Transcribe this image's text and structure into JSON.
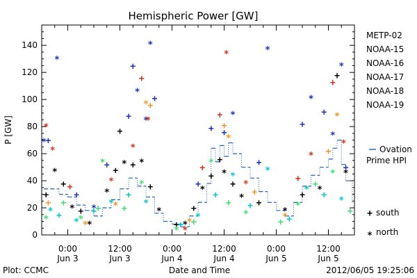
{
  "chart_data": {
    "type": "scatter",
    "title": "Hemispheric Power [GW]",
    "ylabel": "P [GW]",
    "xlabel": "Date and Time",
    "ylim": [
      0,
      155
    ],
    "yticks": [
      0,
      20,
      40,
      60,
      80,
      100,
      120,
      140
    ],
    "xlim": [
      "2012-06-02 18:00",
      "2012-06-05 18:00"
    ],
    "xticks": [
      {
        "at": "2012-06-03 00:00",
        "time": "0:00",
        "date": "Jun 3"
      },
      {
        "at": "2012-06-03 12:00",
        "time": "12:00",
        "date": "Jun 3"
      },
      {
        "at": "2012-06-04 00:00",
        "time": "0:00",
        "date": "Jun 4"
      },
      {
        "at": "2012-06-04 12:00",
        "time": "12:00",
        "date": "Jun 4"
      },
      {
        "at": "2012-06-05 00:00",
        "time": "0:00",
        "date": "Jun 5"
      },
      {
        "at": "2012-06-05 12:00",
        "time": "12:00",
        "date": "Jun 5"
      }
    ],
    "marker_legend": [
      {
        "symbol": "+",
        "label": "south"
      },
      {
        "symbol": "*",
        "label": "north"
      }
    ],
    "ovation": {
      "name": "Ovation Prime HPI",
      "color": "#1f5fbf",
      "points": [
        [
          "2012-06-02 18:30",
          34
        ],
        [
          "2012-06-02 20:00",
          34
        ],
        [
          "2012-06-02 22:00",
          30
        ],
        [
          "2012-06-03 00:00",
          28
        ],
        [
          "2012-06-03 02:00",
          22
        ],
        [
          "2012-06-03 04:00",
          18
        ],
        [
          "2012-06-03 06:00",
          14
        ],
        [
          "2012-06-03 08:00",
          20
        ],
        [
          "2012-06-03 10:00",
          26
        ],
        [
          "2012-06-03 12:00",
          34
        ],
        [
          "2012-06-03 14:00",
          42
        ],
        [
          "2012-06-03 16:00",
          36
        ],
        [
          "2012-06-03 18:00",
          28
        ],
        [
          "2012-06-03 20:00",
          16
        ],
        [
          "2012-06-03 22:00",
          10
        ],
        [
          "2012-06-04 00:00",
          8
        ],
        [
          "2012-06-04 02:00",
          6
        ],
        [
          "2012-06-04 04:00",
          14
        ],
        [
          "2012-06-04 06:00",
          24
        ],
        [
          "2012-06-04 08:00",
          38
        ],
        [
          "2012-06-04 09:00",
          64
        ],
        [
          "2012-06-04 10:00",
          54
        ],
        [
          "2012-06-04 11:00",
          66
        ],
        [
          "2012-06-04 12:00",
          58
        ],
        [
          "2012-06-04 13:00",
          68
        ],
        [
          "2012-06-04 14:00",
          60
        ],
        [
          "2012-06-04 16:00",
          50
        ],
        [
          "2012-06-04 18:00",
          42
        ],
        [
          "2012-06-04 20:00",
          32
        ],
        [
          "2012-06-04 22:00",
          24
        ],
        [
          "2012-06-05 00:00",
          18
        ],
        [
          "2012-06-05 02:00",
          14
        ],
        [
          "2012-06-05 04:00",
          24
        ],
        [
          "2012-06-05 06:00",
          36
        ],
        [
          "2012-06-05 08:00",
          44
        ],
        [
          "2012-06-05 10:00",
          50
        ],
        [
          "2012-06-05 12:00",
          56
        ],
        [
          "2012-06-05 13:00",
          64
        ],
        [
          "2012-06-05 14:00",
          70
        ],
        [
          "2012-06-05 15:00",
          52
        ],
        [
          "2012-06-05 16:00",
          40
        ],
        [
          "2012-06-05 17:30",
          24
        ]
      ]
    },
    "series": [
      {
        "name": "METP-02",
        "color": "#000000",
        "points": [
          [
            "2012-06-02 19:00",
            30,
            "+"
          ],
          [
            "2012-06-02 21:00",
            49,
            "*"
          ],
          [
            "2012-06-02 23:00",
            38,
            "+"
          ],
          [
            "2012-06-03 01:00",
            22,
            "*"
          ],
          [
            "2012-06-03 03:00",
            18,
            "+"
          ],
          [
            "2012-06-03 05:00",
            10,
            "*"
          ],
          [
            "2012-06-03 07:00",
            20,
            "+"
          ],
          [
            "2012-06-03 09:00",
            34,
            "*"
          ],
          [
            "2012-06-03 11:00",
            48,
            "+"
          ],
          [
            "2012-06-03 12:00",
            77,
            "+"
          ],
          [
            "2012-06-03 13:00",
            55,
            "*"
          ],
          [
            "2012-06-03 15:00",
            52,
            "+"
          ],
          [
            "2012-06-03 17:00",
            56,
            "*"
          ],
          [
            "2012-06-03 19:00",
            36,
            "+"
          ],
          [
            "2012-06-03 21:00",
            20,
            "*"
          ],
          [
            "2012-06-04 01:00",
            8,
            "+"
          ],
          [
            "2012-06-04 03:00",
            10,
            "*"
          ],
          [
            "2012-06-04 05:00",
            20,
            "+"
          ],
          [
            "2012-06-04 07:00",
            36,
            "*"
          ],
          [
            "2012-06-04 09:00",
            44,
            "+"
          ],
          [
            "2012-06-04 11:00",
            56,
            "+"
          ],
          [
            "2012-06-04 12:00",
            48,
            "*"
          ],
          [
            "2012-06-04 14:00",
            38,
            "+"
          ],
          [
            "2012-06-04 16:00",
            30,
            "*"
          ],
          [
            "2012-06-04 20:00",
            24,
            "+"
          ],
          [
            "2012-06-05 02:00",
            20,
            "*"
          ],
          [
            "2012-06-05 06:00",
            30,
            "+"
          ],
          [
            "2012-06-05 10:00",
            36,
            "*"
          ],
          [
            "2012-06-05 14:00",
            118,
            "+"
          ],
          [
            "2012-06-05 16:00",
            48,
            "*"
          ]
        ]
      },
      {
        "name": "NOAA-15",
        "color": "#1a2fbf",
        "points": [
          [
            "2012-06-02 18:30",
            71,
            "*"
          ],
          [
            "2012-06-02 19:30",
            70,
            "+"
          ],
          [
            "2012-06-02 21:30",
            132,
            "*"
          ],
          [
            "2012-06-03 02:00",
            30,
            "+"
          ],
          [
            "2012-06-03 06:00",
            22,
            "*"
          ],
          [
            "2012-06-03 09:00",
            52,
            "+"
          ],
          [
            "2012-06-03 14:00",
            88,
            "+"
          ],
          [
            "2012-06-03 15:00",
            125,
            "+"
          ],
          [
            "2012-06-03 16:00",
            108,
            "*"
          ],
          [
            "2012-06-03 18:00",
            87,
            "*"
          ],
          [
            "2012-06-03 19:00",
            143,
            "*"
          ],
          [
            "2012-06-03 20:00",
            101,
            "+"
          ],
          [
            "2012-06-04 06:00",
            38,
            "+"
          ],
          [
            "2012-06-04 09:00",
            79,
            "+"
          ],
          [
            "2012-06-04 12:00",
            76,
            "+"
          ],
          [
            "2012-06-04 14:00",
            91,
            "*"
          ],
          [
            "2012-06-04 20:00",
            54,
            "+"
          ],
          [
            "2012-06-04 22:00",
            139,
            "*"
          ],
          [
            "2012-06-05 06:00",
            82,
            "+"
          ],
          [
            "2012-06-05 08:00",
            103,
            "*"
          ],
          [
            "2012-06-05 11:00",
            91,
            "+"
          ],
          [
            "2012-06-05 13:00",
            76,
            "*"
          ],
          [
            "2012-06-05 15:00",
            127,
            "*"
          ],
          [
            "2012-06-05 16:00",
            50,
            "+"
          ]
        ]
      },
      {
        "name": "NOAA-16",
        "color": "#00c8d2",
        "points": [
          [
            "2012-06-02 20:00",
            20,
            "*"
          ],
          [
            "2012-06-02 22:00",
            15,
            "+"
          ],
          [
            "2012-06-03 02:00",
            12,
            "*"
          ],
          [
            "2012-06-03 06:00",
            18,
            "+"
          ],
          [
            "2012-06-03 10:00",
            26,
            "*"
          ],
          [
            "2012-06-03 14:00",
            30,
            "+"
          ],
          [
            "2012-06-03 18:00",
            26,
            "*"
          ],
          [
            "2012-06-04 02:00",
            8,
            "+"
          ],
          [
            "2012-06-04 06:00",
            16,
            "*"
          ],
          [
            "2012-06-04 10:00",
            30,
            "+"
          ],
          [
            "2012-06-04 14:00",
            46,
            "*"
          ],
          [
            "2012-06-04 18:00",
            22,
            "+"
          ],
          [
            "2012-06-04 22:00",
            50,
            "*"
          ],
          [
            "2012-06-05 03:00",
            12,
            "+"
          ],
          [
            "2012-06-05 07:00",
            36,
            "*"
          ],
          [
            "2012-06-05 11:00",
            30,
            "+"
          ],
          [
            "2012-06-05 15:00",
            28,
            "*"
          ]
        ]
      },
      {
        "name": "NOAA-17",
        "color": "#3ce070",
        "points": [
          [
            "2012-06-02 19:00",
            14,
            "*"
          ],
          [
            "2012-06-02 23:00",
            24,
            "+"
          ],
          [
            "2012-06-03 03:00",
            14,
            "*"
          ],
          [
            "2012-06-03 07:00",
            20,
            "+"
          ],
          [
            "2012-06-03 08:00",
            56,
            "*"
          ],
          [
            "2012-06-03 13:00",
            20,
            "+"
          ],
          [
            "2012-06-03 17:00",
            40,
            "*"
          ],
          [
            "2012-06-04 01:00",
            6,
            "*"
          ],
          [
            "2012-06-04 05:00",
            10,
            "+"
          ],
          [
            "2012-06-04 09:00",
            56,
            "*"
          ],
          [
            "2012-06-04 13:00",
            24,
            "+"
          ],
          [
            "2012-06-04 17:00",
            18,
            "*"
          ],
          [
            "2012-06-05 01:00",
            10,
            "+"
          ],
          [
            "2012-06-05 05:00",
            24,
            "*"
          ],
          [
            "2012-06-05 09:00",
            38,
            "+"
          ],
          [
            "2012-06-05 13:00",
            48,
            "*"
          ],
          [
            "2012-06-05 17:00",
            18,
            "+"
          ]
        ]
      },
      {
        "name": "NOAA-18",
        "color": "#f0961e",
        "points": [
          [
            "2012-06-02 19:30",
            24,
            "+"
          ],
          [
            "2012-06-03 04:00",
            10,
            "*"
          ],
          [
            "2012-06-03 11:00",
            24,
            "*"
          ],
          [
            "2012-06-03 18:00",
            99,
            "*"
          ],
          [
            "2012-06-03 19:00",
            96,
            "+"
          ],
          [
            "2012-06-04 04:00",
            12,
            "*"
          ],
          [
            "2012-06-04 12:00",
            81,
            "+"
          ],
          [
            "2012-06-04 13:00",
            74,
            "*"
          ],
          [
            "2012-06-04 19:00",
            32,
            "+"
          ],
          [
            "2012-06-05 02:00",
            16,
            "*"
          ],
          [
            "2012-06-05 12:00",
            62,
            "+"
          ],
          [
            "2012-06-05 14:00",
            90,
            "*"
          ]
        ]
      },
      {
        "name": "NOAA-19",
        "color": "#d23218",
        "points": [
          [
            "2012-06-02 19:00",
            82,
            "*"
          ],
          [
            "2012-06-02 20:30",
            65,
            "*"
          ],
          [
            "2012-06-03 00:30",
            36,
            "+"
          ],
          [
            "2012-06-03 10:00",
            42,
            "*"
          ],
          [
            "2012-06-03 15:00",
            67,
            "*"
          ],
          [
            "2012-06-03 17:00",
            116,
            "+"
          ],
          [
            "2012-06-03 18:30",
            87,
            "*"
          ],
          [
            "2012-06-04 03:00",
            6,
            "*"
          ],
          [
            "2012-06-04 07:00",
            50,
            "+"
          ],
          [
            "2012-06-04 11:00",
            89,
            "+"
          ],
          [
            "2012-06-04 12:30",
            136,
            "*"
          ],
          [
            "2012-06-04 17:00",
            40,
            "*"
          ],
          [
            "2012-06-05 05:00",
            42,
            "+"
          ],
          [
            "2012-06-05 08:00",
            61,
            "*"
          ],
          [
            "2012-06-05 13:00",
            113,
            "+"
          ],
          [
            "2012-06-05 15:30",
            70,
            "*"
          ]
        ]
      }
    ]
  },
  "footer": {
    "left": "Plot: CCMC",
    "right": "2012/06/05 19:25:06"
  }
}
